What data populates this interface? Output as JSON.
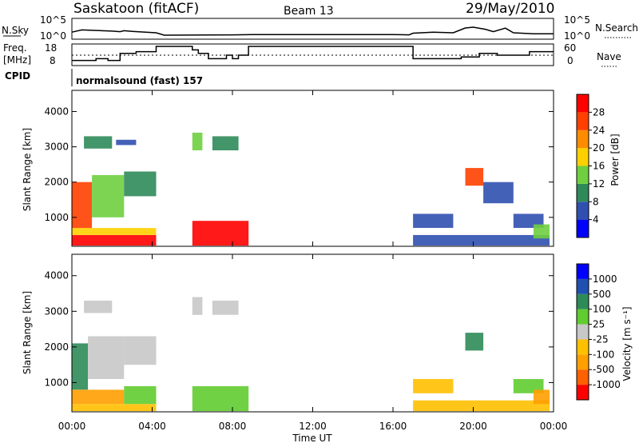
{
  "header": {
    "station": "Saskatoon (fitACF)",
    "beam": "Beam 13",
    "date": "29/May/2010"
  },
  "param_panels": {
    "nsky_label": "N.Sky",
    "nsky_ticks": [
      "10^5",
      "10^0"
    ],
    "nsearch_label": "N.Search",
    "nsearch_ticks": [
      "10^5",
      "10^0"
    ],
    "freq_label": [
      "Freq.",
      "[MHz]"
    ],
    "freq_ticks": [
      "18",
      "8"
    ],
    "nave_label": "Nave",
    "nave_ticks": [
      "60",
      "0"
    ],
    "cpid_label": "CPID",
    "cpid_value": "normalsound (fast) 157"
  },
  "colors": {
    "power": [
      "#0000ff",
      "#3050b0",
      "#2f8a5a",
      "#6fcf3f",
      "#ffd000",
      "#ff8c00",
      "#ff4000",
      "#ff0000"
    ],
    "velocity": [
      "#ff0000",
      "#ff6000",
      "#ff9f00",
      "#ffc000",
      "#c8c8c8",
      "#60cc30",
      "#2e8b57",
      "#2050b0",
      "#0000ff"
    ]
  },
  "chart_data": [
    {
      "type": "line",
      "title": "N.Sky / N.Search",
      "x_range_hours": [
        0,
        24
      ],
      "ylabel": "N.Sky",
      "y2label": "N.Search",
      "y_scale": "log",
      "ylim": [
        1,
        100000
      ],
      "series": [
        {
          "name": "N.Sky",
          "x": [
            0,
            0.5,
            1.0,
            2.0,
            2.4,
            2.6,
            3.0,
            4.2,
            4.6,
            8.0,
            9.0,
            12.0,
            16.0,
            16.8,
            17.0,
            18.0,
            19.0,
            19.6,
            20.0,
            20.6,
            21.0,
            21.6,
            22.0,
            23.0,
            24.0
          ],
          "y": [
            60,
            250,
            200,
            120,
            80,
            150,
            100,
            40,
            8,
            10,
            12,
            12,
            12,
            10,
            30,
            60,
            40,
            900,
            1500,
            400,
            80,
            800,
            40,
            20,
            20
          ]
        }
      ]
    },
    {
      "type": "line",
      "title": "Freq / Nave",
      "x_range_hours": [
        0,
        24
      ],
      "ylabel": "Freq. [MHz]",
      "y2label": "Nave",
      "ylim": [
        8,
        18
      ],
      "y2lim": [
        0,
        60
      ],
      "series": [
        {
          "name": "Freq.",
          "x": [
            0,
            1.2,
            1.2,
            1.8,
            1.8,
            2.4,
            2.4,
            3.2,
            3.2,
            4.2,
            4.2,
            6.0,
            6.0,
            6.3,
            6.3,
            6.8,
            6.8,
            7.2,
            7.2,
            7.7,
            7.7,
            8.0,
            8.0,
            8.3,
            8.3,
            8.8,
            8.8,
            17.0,
            17.0,
            17.6,
            17.6,
            19.4,
            19.4,
            20.3,
            20.3,
            21.2,
            21.2,
            22.8,
            22.8,
            24.0
          ],
          "y": [
            10,
            10,
            11,
            11,
            10,
            10,
            14,
            14,
            15,
            15,
            18,
            18,
            16,
            16,
            14,
            14,
            11,
            11,
            11,
            11,
            13,
            13,
            11,
            11,
            13,
            13,
            18,
            18,
            11,
            11,
            11,
            11,
            12,
            12,
            14,
            14,
            13,
            13,
            15,
            15
          ]
        },
        {
          "name": "Nave",
          "x": [
            0,
            24
          ],
          "y": [
            22,
            22
          ]
        }
      ]
    },
    {
      "type": "heatmap",
      "title": "Power",
      "xlabel": "Time UT",
      "ylabel": "Slant Range [km]",
      "x_ticks": [
        "00:00",
        "04:00",
        "08:00",
        "12:00",
        "16:00",
        "20:00",
        "00:00"
      ],
      "x_range_hours": [
        0,
        24
      ],
      "y_ticks": [
        "1000",
        "2000",
        "3000",
        "4000"
      ],
      "ylim": [
        180,
        4600
      ],
      "colorbar_label": "Power [dB]",
      "colorbar_ticks": [
        "4",
        "8",
        "12",
        "16",
        "20",
        "24",
        "28"
      ],
      "colorbar_range": [
        0,
        32
      ],
      "regions": [
        {
          "t": [
            0.0,
            4.2
          ],
          "r": [
            200,
            500
          ],
          "value": 30
        },
        {
          "t": [
            0.0,
            4.2
          ],
          "r": [
            500,
            700
          ],
          "value": 18
        },
        {
          "t": [
            0.0,
            1.0
          ],
          "r": [
            700,
            2000
          ],
          "value": 26
        },
        {
          "t": [
            1.0,
            2.6
          ],
          "r": [
            1000,
            2200
          ],
          "value": 14
        },
        {
          "t": [
            2.6,
            4.2
          ],
          "r": [
            1600,
            2300
          ],
          "value": 10
        },
        {
          "t": [
            0.6,
            2.0
          ],
          "r": [
            2950,
            3300
          ],
          "value": 9
        },
        {
          "t": [
            2.2,
            3.2
          ],
          "r": [
            3050,
            3200
          ],
          "value": 6
        },
        {
          "t": [
            6.0,
            8.8
          ],
          "r": [
            200,
            900
          ],
          "value": 28
        },
        {
          "t": [
            6.0,
            6.5
          ],
          "r": [
            2900,
            3400
          ],
          "value": 14
        },
        {
          "t": [
            7.0,
            8.3
          ],
          "r": [
            2900,
            3300
          ],
          "value": 8
        },
        {
          "t": [
            17.0,
            19.0
          ],
          "r": [
            700,
            1100
          ],
          "value": 5
        },
        {
          "t": [
            17.0,
            23.8
          ],
          "r": [
            200,
            500
          ],
          "value": 6
        },
        {
          "t": [
            19.6,
            20.5
          ],
          "r": [
            1900,
            2400
          ],
          "value": 26
        },
        {
          "t": [
            20.5,
            22.0
          ],
          "r": [
            1400,
            2000
          ],
          "value": 6
        },
        {
          "t": [
            22.0,
            23.5
          ],
          "r": [
            700,
            1100
          ],
          "value": 7
        },
        {
          "t": [
            23.0,
            23.8
          ],
          "r": [
            400,
            800
          ],
          "value": 14
        }
      ]
    },
    {
      "type": "heatmap",
      "title": "Velocity",
      "xlabel": "Time UT",
      "ylabel": "Slant Range [km]",
      "x_ticks": [
        "00:00",
        "04:00",
        "08:00",
        "12:00",
        "16:00",
        "20:00",
        "00:00"
      ],
      "x_range_hours": [
        0,
        24
      ],
      "y_ticks": [
        "1000",
        "2000",
        "3000",
        "4000"
      ],
      "ylim": [
        180,
        4600
      ],
      "colorbar_label": "Velocity [m s⁻¹]",
      "colorbar_ticks": [
        "1000",
        "500",
        "100",
        "25",
        "-25",
        "-100",
        "-500",
        "-1000"
      ],
      "regions": [
        {
          "t": [
            0.0,
            4.2
          ],
          "r": [
            200,
            400
          ],
          "value": -100
        },
        {
          "t": [
            0.0,
            2.6
          ],
          "r": [
            400,
            800
          ],
          "value": -300
        },
        {
          "t": [
            2.6,
            4.2
          ],
          "r": [
            400,
            900
          ],
          "value": 60
        },
        {
          "t": [
            0.0,
            0.8
          ],
          "r": [
            800,
            2100
          ],
          "value": 300
        },
        {
          "t": [
            0.8,
            2.6
          ],
          "r": [
            1100,
            2300
          ],
          "value": 0
        },
        {
          "t": [
            2.6,
            4.2
          ],
          "r": [
            1500,
            2300
          ],
          "value": 0
        },
        {
          "t": [
            0.6,
            2.0
          ],
          "r": [
            2950,
            3300
          ],
          "value": 0
        },
        {
          "t": [
            6.0,
            8.8
          ],
          "r": [
            200,
            900
          ],
          "value": 60
        },
        {
          "t": [
            6.0,
            6.5
          ],
          "r": [
            2900,
            3400
          ],
          "value": 0
        },
        {
          "t": [
            7.0,
            8.3
          ],
          "r": [
            2900,
            3300
          ],
          "value": 0
        },
        {
          "t": [
            17.0,
            19.0
          ],
          "r": [
            700,
            1100
          ],
          "value": -60
        },
        {
          "t": [
            17.0,
            23.8
          ],
          "r": [
            200,
            500
          ],
          "value": -100
        },
        {
          "t": [
            19.6,
            20.5
          ],
          "r": [
            1900,
            2400
          ],
          "value": 200
        },
        {
          "t": [
            22.0,
            23.5
          ],
          "r": [
            700,
            1100
          ],
          "value": 60
        },
        {
          "t": [
            23.0,
            23.8
          ],
          "r": [
            400,
            800
          ],
          "value": -300
        }
      ]
    }
  ]
}
